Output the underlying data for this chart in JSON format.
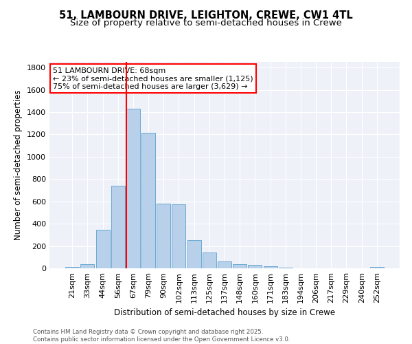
{
  "title": "51, LAMBOURN DRIVE, LEIGHTON, CREWE, CW1 4TL",
  "subtitle": "Size of property relative to semi-detached houses in Crewe",
  "xlabel": "Distribution of semi-detached houses by size in Crewe",
  "ylabel": "Number of semi-detached properties",
  "categories": [
    "21sqm",
    "33sqm",
    "44sqm",
    "56sqm",
    "67sqm",
    "79sqm",
    "90sqm",
    "102sqm",
    "113sqm",
    "125sqm",
    "137sqm",
    "148sqm",
    "160sqm",
    "171sqm",
    "183sqm",
    "194sqm",
    "206sqm",
    "217sqm",
    "229sqm",
    "240sqm",
    "252sqm"
  ],
  "values": [
    15,
    40,
    345,
    740,
    1430,
    1215,
    580,
    575,
    250,
    140,
    60,
    35,
    28,
    20,
    5,
    3,
    1,
    1,
    0,
    0,
    10
  ],
  "bar_color": "#b8d0ea",
  "bar_edge_color": "#6aaad4",
  "highlight_index": 4,
  "highlight_line_color": "red",
  "annotation_title": "51 LAMBOURN DRIVE: 68sqm",
  "annotation_line1": "← 23% of semi-detached houses are smaller (1,125)",
  "annotation_line2": "75% of semi-detached houses are larger (3,629) →",
  "ylim": [
    0,
    1850
  ],
  "yticks": [
    0,
    200,
    400,
    600,
    800,
    1000,
    1200,
    1400,
    1600,
    1800
  ],
  "background_color": "#eef2f8",
  "footer_line1": "Contains HM Land Registry data © Crown copyright and database right 2025.",
  "footer_line2": "Contains public sector information licensed under the Open Government Licence v3.0.",
  "title_fontsize": 10.5,
  "subtitle_fontsize": 9.5,
  "ann_fontsize": 8.0,
  "axis_label_fontsize": 8.5,
  "tick_fontsize": 8.0
}
